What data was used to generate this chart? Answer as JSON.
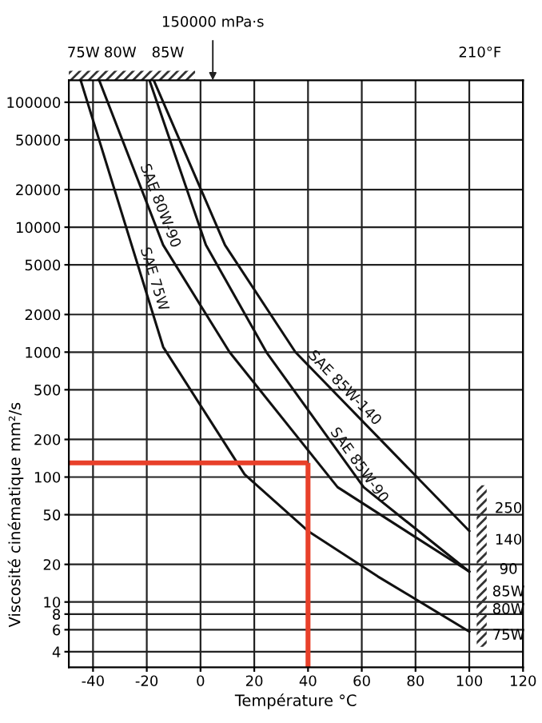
{
  "chart_data": {
    "type": "line",
    "xlabel": "Température °C",
    "ylabel": "Viscosité cinématique mm²/s",
    "series": [
      {
        "name": "SAE 75W",
        "color": "#111111",
        "x": [
          -44.6,
          -13.9,
          16.4,
          40,
          66,
          100
        ],
        "values": [
          150000,
          1100,
          105,
          37,
          16,
          5.8
        ]
      },
      {
        "name": "SAE 80W-90",
        "color": "#111111",
        "x": [
          -37.7,
          -13.9,
          10.8,
          51,
          100
        ],
        "values": [
          150000,
          7200,
          1000,
          83,
          17.5
        ]
      },
      {
        "name": "SAE 85W-90",
        "color": "#111111",
        "x": [
          -19,
          2,
          24.5,
          60.7,
          100
        ],
        "values": [
          150000,
          7200,
          1000,
          83,
          17.5
        ]
      },
      {
        "name": "SAE 85W-140",
        "color": "#111111",
        "x": [
          -17.4,
          9.1,
          35.3,
          100
        ],
        "values": [
          150000,
          7200,
          1000,
          37
        ]
      }
    ],
    "xlim": [
      -49,
      120
    ],
    "xticks": [
      -40,
      -20,
      0,
      20,
      40,
      60,
      80,
      100,
      120
    ],
    "ylim": [
      3,
      150000
    ],
    "yticks": [
      4,
      6,
      8,
      10,
      20,
      50,
      100,
      200,
      500,
      1000,
      2000,
      5000,
      10000,
      20000,
      50000,
      100000
    ],
    "log": "y",
    "grid": true,
    "ref_lines": [
      {
        "axis": "y",
        "value": 130,
        "label": null,
        "color": "#e8402a"
      },
      {
        "axis": "x",
        "value": 40,
        "label": null,
        "color": "#e8402a"
      }
    ],
    "annotations": [
      "150000 mPa·s",
      "75W",
      "80W",
      "85W",
      "210°F",
      "250",
      "140",
      "90",
      "85W",
      "80W",
      "75W"
    ]
  }
}
